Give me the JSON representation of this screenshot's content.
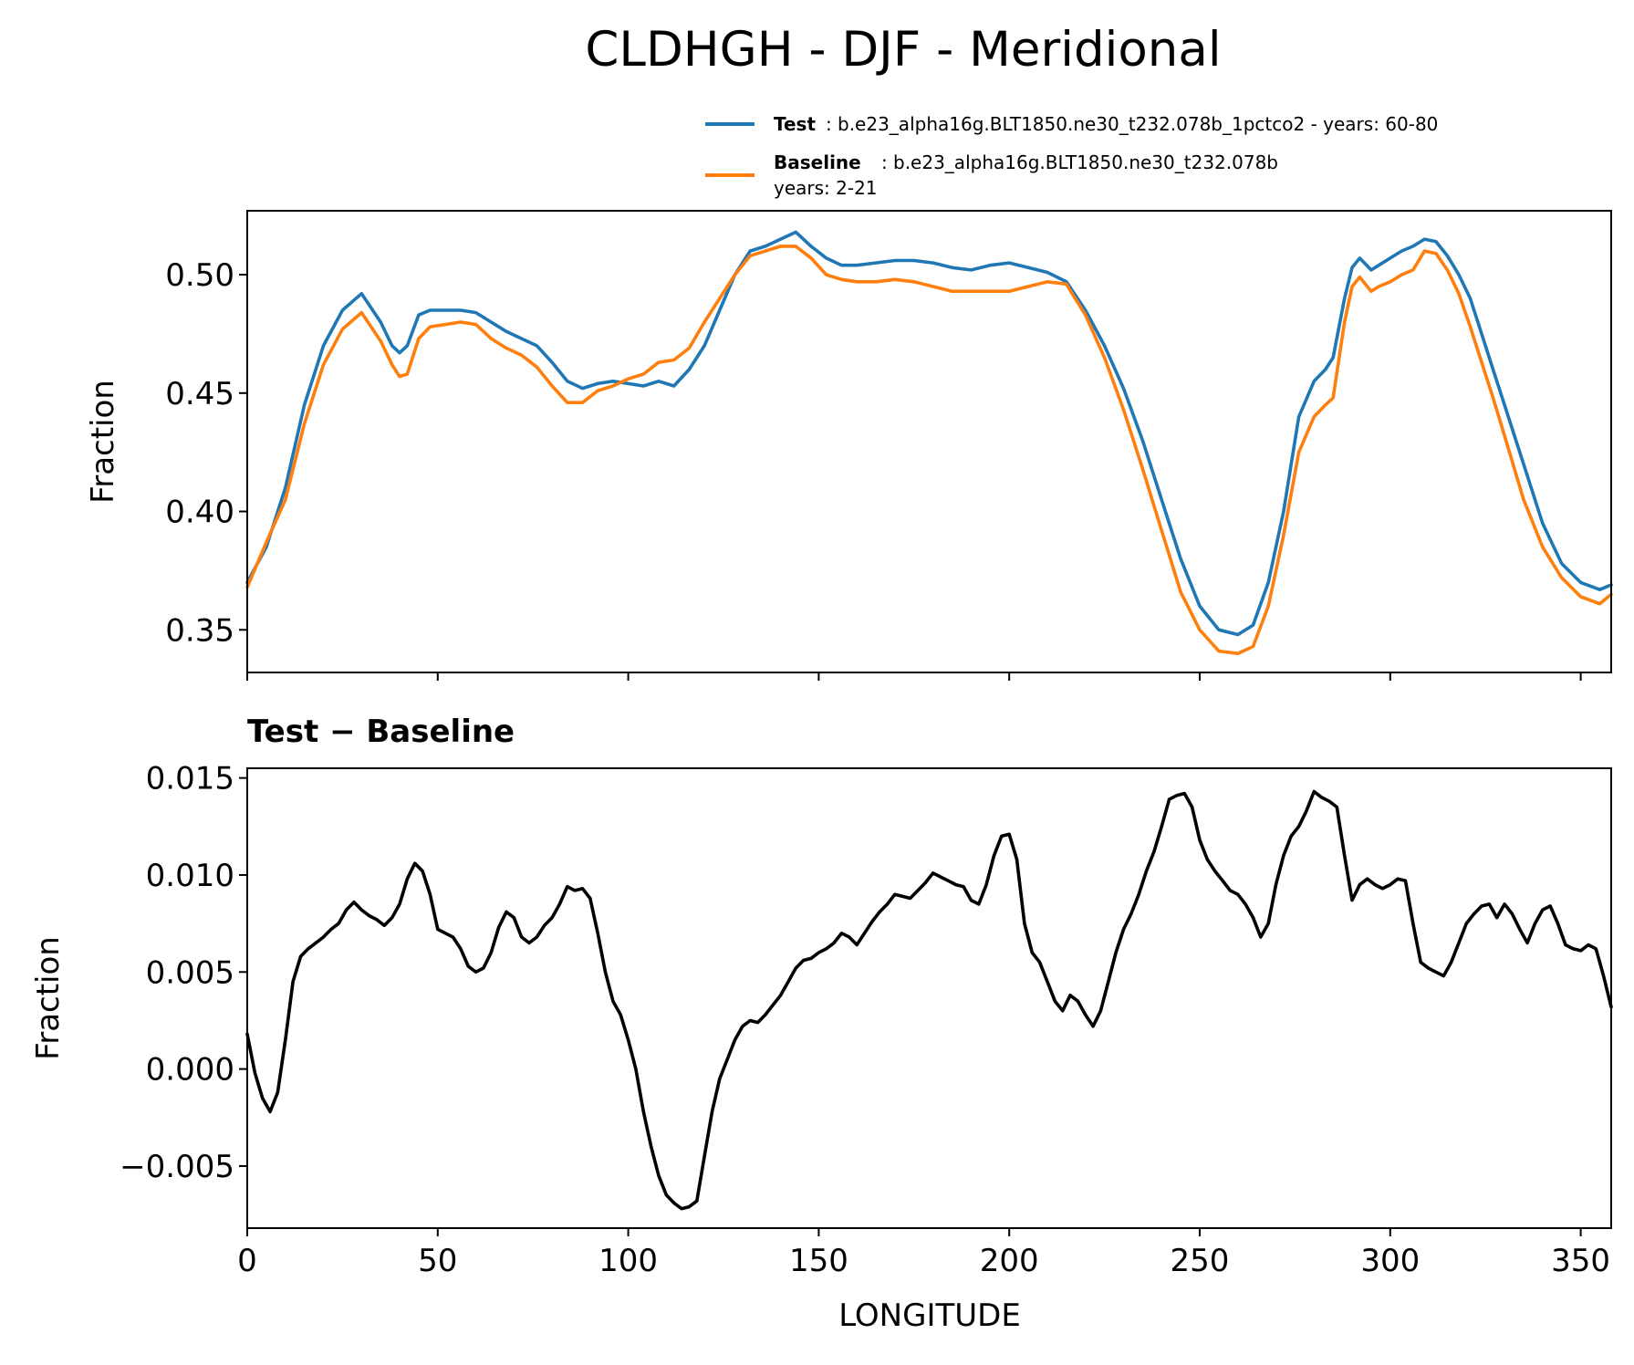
{
  "chart_data": [
    {
      "type": "line",
      "title": "CLDHGH - DJF - Meridional",
      "xlabel": "",
      "ylabel": "Fraction",
      "xlim": [
        0,
        358
      ],
      "ylim": [
        0.332,
        0.527
      ],
      "yticks": [
        0.35,
        0.4,
        0.45,
        0.5
      ],
      "ytick_labels": [
        "0.35",
        "0.40",
        "0.45",
        "0.50"
      ],
      "xticks": [
        0,
        50,
        100,
        150,
        200,
        250,
        300,
        350
      ],
      "legend_location": "above-right",
      "series": [
        {
          "name": "Test",
          "legend_desc": "b.e23_alpha16g.BLT1850.ne30_t232.078b_1pctco2 - years: 60-80",
          "color": "#1f77b4",
          "x": [
            0,
            5,
            10,
            15,
            20,
            25,
            30,
            35,
            38,
            40,
            42,
            45,
            48,
            52,
            56,
            60,
            64,
            68,
            72,
            76,
            80,
            84,
            88,
            92,
            96,
            100,
            104,
            108,
            112,
            116,
            120,
            124,
            128,
            132,
            136,
            140,
            144,
            148,
            152,
            156,
            160,
            165,
            170,
            175,
            180,
            185,
            190,
            195,
            200,
            205,
            210,
            215,
            220,
            225,
            230,
            235,
            240,
            245,
            250,
            255,
            260,
            264,
            268,
            272,
            276,
            280,
            283,
            285,
            288,
            290,
            292,
            295,
            297,
            300,
            303,
            306,
            309,
            312,
            315,
            318,
            321,
            324,
            327,
            330,
            335,
            340,
            345,
            350,
            355,
            358
          ],
          "values": [
            0.37,
            0.385,
            0.41,
            0.445,
            0.47,
            0.485,
            0.492,
            0.48,
            0.47,
            0.467,
            0.47,
            0.483,
            0.485,
            0.485,
            0.485,
            0.484,
            0.48,
            0.476,
            0.473,
            0.47,
            0.463,
            0.455,
            0.452,
            0.454,
            0.455,
            0.454,
            0.453,
            0.455,
            0.453,
            0.46,
            0.47,
            0.485,
            0.5,
            0.51,
            0.512,
            0.515,
            0.518,
            0.512,
            0.507,
            0.504,
            0.504,
            0.505,
            0.506,
            0.506,
            0.505,
            0.503,
            0.502,
            0.504,
            0.505,
            0.503,
            0.501,
            0.497,
            0.485,
            0.47,
            0.452,
            0.43,
            0.405,
            0.38,
            0.36,
            0.35,
            0.348,
            0.352,
            0.37,
            0.4,
            0.44,
            0.455,
            0.46,
            0.465,
            0.49,
            0.503,
            0.507,
            0.502,
            0.504,
            0.507,
            0.51,
            0.512,
            0.515,
            0.514,
            0.508,
            0.5,
            0.49,
            0.475,
            0.46,
            0.445,
            0.42,
            0.395,
            0.378,
            0.37,
            0.367,
            0.369
          ]
        },
        {
          "name": "Baseline",
          "legend_desc": "b.e23_alpha16g.BLT1850.ne30_t232.078b",
          "legend_desc2": "years: 2-21",
          "color": "#ff7f0e",
          "x": [
            0,
            5,
            10,
            15,
            20,
            25,
            30,
            35,
            38,
            40,
            42,
            45,
            48,
            52,
            56,
            60,
            64,
            68,
            72,
            76,
            80,
            84,
            88,
            92,
            96,
            100,
            104,
            108,
            112,
            116,
            120,
            124,
            128,
            132,
            136,
            140,
            144,
            148,
            152,
            156,
            160,
            165,
            170,
            175,
            180,
            185,
            190,
            195,
            200,
            205,
            210,
            215,
            220,
            225,
            230,
            235,
            240,
            245,
            250,
            255,
            260,
            264,
            268,
            272,
            276,
            280,
            283,
            285,
            288,
            290,
            292,
            295,
            297,
            300,
            303,
            306,
            309,
            312,
            315,
            318,
            321,
            324,
            327,
            330,
            335,
            340,
            345,
            350,
            355,
            358
          ],
          "values": [
            0.368,
            0.387,
            0.405,
            0.437,
            0.462,
            0.477,
            0.484,
            0.472,
            0.462,
            0.457,
            0.458,
            0.473,
            0.478,
            0.479,
            0.48,
            0.479,
            0.473,
            0.469,
            0.466,
            0.461,
            0.453,
            0.446,
            0.446,
            0.451,
            0.453,
            0.456,
            0.458,
            0.463,
            0.464,
            0.469,
            0.48,
            0.49,
            0.5,
            0.508,
            0.51,
            0.512,
            0.512,
            0.507,
            0.5,
            0.498,
            0.497,
            0.497,
            0.498,
            0.497,
            0.495,
            0.493,
            0.493,
            0.493,
            0.493,
            0.495,
            0.497,
            0.496,
            0.483,
            0.465,
            0.443,
            0.418,
            0.392,
            0.366,
            0.35,
            0.341,
            0.34,
            0.343,
            0.36,
            0.39,
            0.425,
            0.44,
            0.445,
            0.448,
            0.48,
            0.495,
            0.499,
            0.493,
            0.495,
            0.497,
            0.5,
            0.502,
            0.51,
            0.509,
            0.502,
            0.492,
            0.478,
            0.463,
            0.448,
            0.432,
            0.405,
            0.385,
            0.372,
            0.364,
            0.361,
            0.365
          ]
        }
      ]
    },
    {
      "type": "line",
      "title": "Test − Baseline",
      "xlabel": "LONGITUDE",
      "ylabel": "Fraction",
      "xlim": [
        0,
        358
      ],
      "ylim": [
        -0.0082,
        0.0155
      ],
      "yticks": [
        -0.005,
        0.0,
        0.005,
        0.01,
        0.015
      ],
      "ytick_labels": [
        "−0.005",
        "0.000",
        "0.005",
        "0.010",
        "0.015"
      ],
      "xticks": [
        0,
        50,
        100,
        150,
        200,
        250,
        300,
        350
      ],
      "xtick_labels": [
        "0",
        "50",
        "100",
        "150",
        "200",
        "250",
        "300",
        "350"
      ],
      "series": [
        {
          "name": "Test − Baseline",
          "color": "#000000",
          "x": [
            0,
            2,
            4,
            6,
            8,
            10,
            12,
            14,
            16,
            18,
            20,
            22,
            24,
            26,
            28,
            30,
            32,
            34,
            36,
            38,
            40,
            42,
            44,
            46,
            48,
            50,
            52,
            54,
            56,
            58,
            60,
            62,
            64,
            66,
            68,
            70,
            72,
            74,
            76,
            78,
            80,
            82,
            84,
            86,
            88,
            90,
            92,
            94,
            96,
            98,
            100,
            102,
            104,
            106,
            108,
            110,
            112,
            114,
            116,
            118,
            120,
            122,
            124,
            126,
            128,
            130,
            132,
            134,
            136,
            138,
            140,
            142,
            144,
            146,
            148,
            150,
            152,
            154,
            156,
            158,
            160,
            162,
            164,
            166,
            168,
            170,
            172,
            174,
            176,
            178,
            180,
            182,
            184,
            186,
            188,
            190,
            192,
            194,
            196,
            198,
            200,
            202,
            204,
            206,
            208,
            210,
            212,
            214,
            216,
            218,
            220,
            222,
            224,
            226,
            228,
            230,
            232,
            234,
            236,
            238,
            240,
            242,
            244,
            246,
            248,
            250,
            252,
            254,
            256,
            258,
            260,
            262,
            264,
            266,
            268,
            270,
            272,
            274,
            276,
            278,
            280,
            282,
            284,
            286,
            288,
            290,
            292,
            294,
            296,
            298,
            300,
            302,
            304,
            306,
            308,
            310,
            312,
            314,
            316,
            318,
            320,
            322,
            324,
            326,
            328,
            330,
            332,
            334,
            336,
            338,
            340,
            342,
            344,
            346,
            348,
            350,
            352,
            354,
            356,
            358
          ],
          "values": [
            0.0018,
            -0.0002,
            -0.0015,
            -0.0022,
            -0.0012,
            0.0015,
            0.0045,
            0.0058,
            0.0062,
            0.0065,
            0.0068,
            0.0072,
            0.0075,
            0.0082,
            0.0086,
            0.0082,
            0.0079,
            0.0077,
            0.0074,
            0.0078,
            0.0085,
            0.0098,
            0.0106,
            0.0102,
            0.009,
            0.0072,
            0.007,
            0.0068,
            0.0062,
            0.0053,
            0.005,
            0.0052,
            0.006,
            0.0073,
            0.0081,
            0.0078,
            0.0068,
            0.0065,
            0.0068,
            0.0074,
            0.0078,
            0.0085,
            0.0094,
            0.0092,
            0.0093,
            0.0088,
            0.007,
            0.005,
            0.0035,
            0.0028,
            0.0015,
            0.0,
            -0.0022,
            -0.004,
            -0.0055,
            -0.0065,
            -0.0069,
            -0.0072,
            -0.0071,
            -0.0068,
            -0.0045,
            -0.0022,
            -0.0005,
            0.0005,
            0.0015,
            0.0022,
            0.0025,
            0.0024,
            0.0028,
            0.0033,
            0.0038,
            0.0045,
            0.0052,
            0.0056,
            0.0057,
            0.006,
            0.0062,
            0.0065,
            0.007,
            0.0068,
            0.0064,
            0.007,
            0.0076,
            0.0081,
            0.0085,
            0.009,
            0.0089,
            0.0088,
            0.0092,
            0.0096,
            0.0101,
            0.0099,
            0.0097,
            0.0095,
            0.0094,
            0.0087,
            0.0085,
            0.0095,
            0.011,
            0.012,
            0.0121,
            0.0108,
            0.0075,
            0.006,
            0.0055,
            0.0045,
            0.0035,
            0.003,
            0.0038,
            0.0035,
            0.0028,
            0.0022,
            0.003,
            0.0045,
            0.006,
            0.0072,
            0.008,
            0.009,
            0.0102,
            0.0112,
            0.0125,
            0.0139,
            0.0141,
            0.0142,
            0.0135,
            0.0118,
            0.0108,
            0.0102,
            0.0097,
            0.0092,
            0.009,
            0.0085,
            0.0078,
            0.0068,
            0.0075,
            0.0095,
            0.011,
            0.012,
            0.0125,
            0.0133,
            0.0143,
            0.014,
            0.0138,
            0.0135,
            0.011,
            0.0087,
            0.0095,
            0.0098,
            0.0095,
            0.0093,
            0.0095,
            0.0098,
            0.0097,
            0.0075,
            0.0055,
            0.0052,
            0.005,
            0.0048,
            0.0055,
            0.0065,
            0.0075,
            0.008,
            0.0084,
            0.0085,
            0.0078,
            0.0085,
            0.008,
            0.0072,
            0.0065,
            0.0075,
            0.0082,
            0.0084,
            0.0075,
            0.0064,
            0.0062,
            0.0061,
            0.0064,
            0.0062,
            0.0048,
            0.0032
          ]
        }
      ]
    }
  ]
}
